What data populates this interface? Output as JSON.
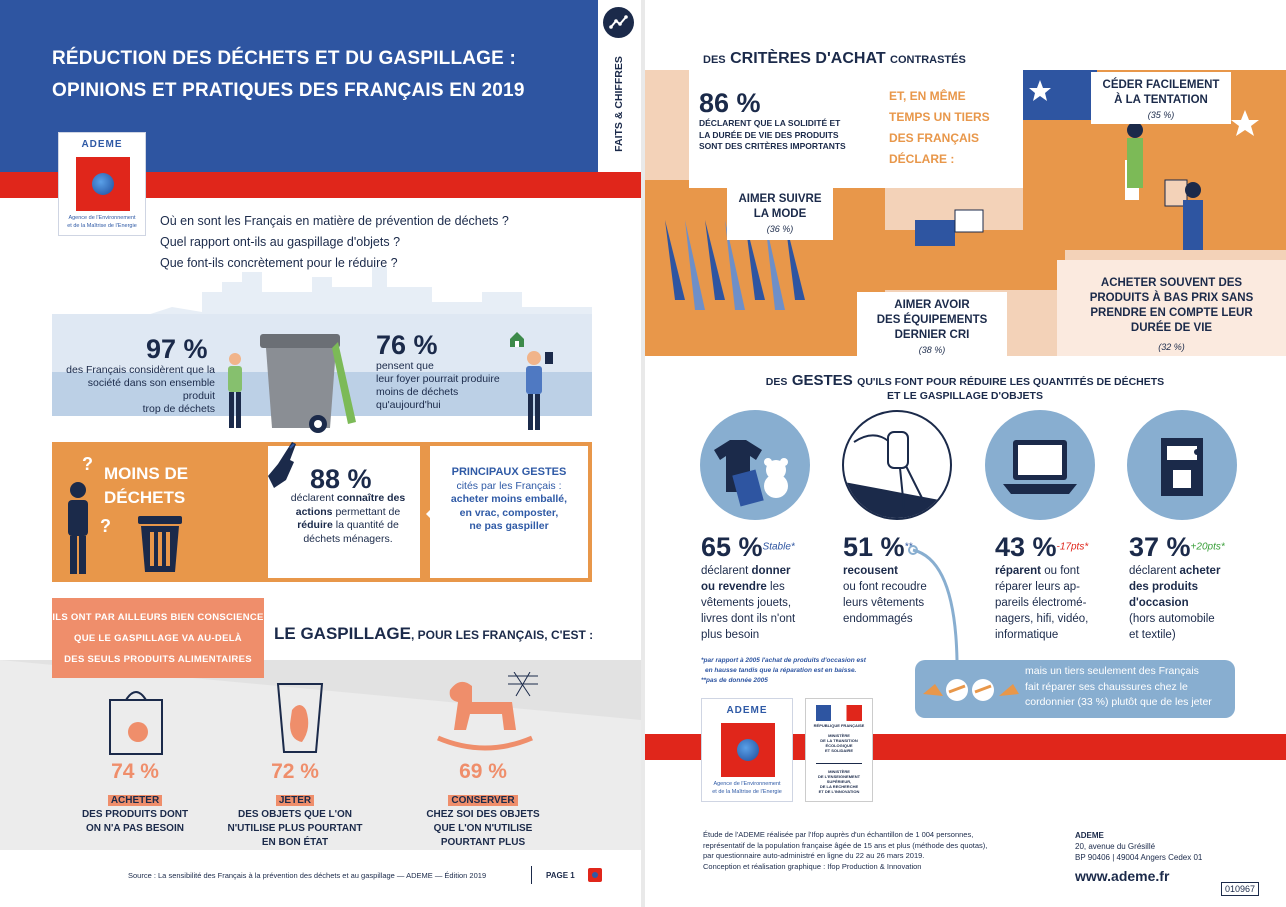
{
  "page1": {
    "title_line1": "RÉDUCTION DES DÉCHETS ET DU GASPILLAGE :",
    "title_line2": "OPINIONS ET PRATIQUES DES FRANÇAIS EN 2019",
    "side_label": "FAITS & CHIFFRES",
    "logo": {
      "name": "ADEME",
      "subtitle_line1": "Agence de l'Environnement",
      "subtitle_line2": "et de la Maîtrise de l'Energie"
    },
    "questions": [
      "Où en sont les Français en matière de prévention de déchets ?",
      "Quel rapport ont-ils au gaspillage d'objets ?",
      "Que font-ils concrètement pour le réduire ?"
    ],
    "stat97": {
      "value": "97 %",
      "text_line1": "des Français considèrent que la",
      "text_line2": "société dans son ensemble produit",
      "text_line3": "trop de déchets"
    },
    "stat76": {
      "value": "76 %",
      "text_line1": "pensent que",
      "text_line2": "leur foyer pourrait produire",
      "text_line3": "moins de déchets",
      "text_line4": "qu'aujourd'hui"
    },
    "moins_dechets_line1": "MOINS DE",
    "moins_dechets_line2": "DÉCHETS",
    "stat88": {
      "value": "88 %",
      "line1": "déclarent",
      "line1b": "connaître des",
      "line2": "actions",
      "line2b": "permettant de",
      "line3": "réduire",
      "line3b": "la quantité de",
      "line4": "déchets ménagers."
    },
    "gestes": {
      "title": "PRINCIPAUX GESTES",
      "line1": "cités par les Français :",
      "line2": "acheter moins emballé,",
      "line3": "en vrac, composter,",
      "line4": "ne pas gaspiller"
    },
    "conscience_line1": "ILS ONT PAR AILLEURS BIEN CONSCIENCE",
    "conscience_line2": "QUE LE GASPILLAGE VA AU-DELÀ",
    "conscience_line3": "DES SEULS PRODUITS ALIMENTAIRES",
    "gaspillage_title_big": "LE GASPILLAGE",
    "gaspillage_title_small": ", POUR LES FRANÇAIS, C'EST :",
    "waste_items": [
      {
        "value": "74 %",
        "action": "ACHETER",
        "line1": "DES PRODUITS DONT",
        "line2": "ON N'A PAS BESOIN",
        "line3": ""
      },
      {
        "value": "72 %",
        "action": "JETER",
        "line1": "DES OBJETS QUE L'ON",
        "line2": "N'UTILISE PLUS POURTANT",
        "line3": "EN BON ÉTAT"
      },
      {
        "value": "69 %",
        "action": "CONSERVER",
        "line1": "CHEZ SOI DES OBJETS",
        "line2": "QUE L'ON N'UTILISE",
        "line3": "POURTANT PLUS"
      }
    ],
    "source": "Source : La sensibilité des Français à la prévention des déchets et au gaspillage — ADEME — Édition 2019",
    "page_label": "PAGE 1"
  },
  "page2": {
    "criteres_small1": "DES",
    "criteres_big": "CRITÈRES D'ACHAT",
    "criteres_small2": "CONTRASTÉS",
    "stat86": {
      "value": "86 %",
      "line1": "DÉCLARENT QUE LA SOLIDITÉ ET",
      "line2": "LA DURÉE DE VIE DES PRODUITS",
      "line3": "SONT DES CRITÈRES IMPORTANTS"
    },
    "tiers_line1": "ET, EN MÊME",
    "tiers_line2": "TEMPS UN TIERS",
    "tiers_line3": "DES FRANÇAIS",
    "tiers_line4": "DÉCLARE :",
    "ceder": {
      "line1": "CÉDER FACILEMENT",
      "line2": "À LA TENTATION",
      "pct": "(35 %)"
    },
    "mode": {
      "line1": "AIMER SUIVRE",
      "line2": "LA MODE",
      "pct": "(36 %)"
    },
    "equipements": {
      "line1": "AIMER AVOIR",
      "line2": "DES ÉQUIPEMENTS",
      "line3": "DERNIER CRI",
      "pct": "(38 %)"
    },
    "bas_prix": {
      "line1": "ACHETER SOUVENT DES",
      "line2": "PRODUITS À BAS PRIX SANS",
      "line3": "PRENDRE EN COMPTE LEUR",
      "line4": "DURÉE DE VIE",
      "pct": "(32 %)"
    },
    "gestes_title_small1": "DES",
    "gestes_title_big": "GESTES",
    "gestes_title_small2": "QU'ILS FONT POUR RÉDUIRE LES QUANTITÉS DE DÉCHETS",
    "gestes_title_line2": "ET LE GASPILLAGE D'OBJETS",
    "stats": [
      {
        "value": "65 %",
        "trend": "Stable*",
        "l1a": "déclarent",
        "l1b": "donner",
        "l2a": "ou revendre",
        "l2b": "les",
        "l3": "vêtements jouets,",
        "l4": "livres dont ils n'ont",
        "l5": "plus besoin"
      },
      {
        "value": "51 %",
        "trend": "**",
        "l1a": "",
        "l1b": "recousent",
        "l2a": "ou font",
        "l2b": "recoudre",
        "l3": "leurs vêtements",
        "l4": "endommagés",
        "l5": ""
      },
      {
        "value": "43 %",
        "trend": "-17pts*",
        "l1a": "",
        "l1b": "réparent",
        "l2a": "ou font",
        "l2b": "réparer leurs ap-",
        "l3": "pareils électromé-",
        "l4": "nagers, hifi, vidéo,",
        "l5": "informatique"
      },
      {
        "value": "37 %",
        "trend": "+20pts*",
        "l1a": "déclarent",
        "l1b": "acheter",
        "l2a": "des produits",
        "l2b": "d'occasion",
        "l3": "(hors automobile",
        "l4": "et textile)",
        "l5": ""
      }
    ],
    "colors": {
      "trend_neg": "#e0261b",
      "trend_pos": "#3aa03a"
    },
    "footnote1": "*par rapport à 2005 l'achat de produits d'occasion est",
    "footnote2": "en hausse tandis que la réparation est en baisse.",
    "footnote3": "**pas de donnée 2005",
    "shoes_line1": "mais un tiers seulement des Français",
    "shoes_line2": "fait réparer ses chaussures chez le",
    "shoes_line3": "cordonnier (33 %) plutôt que de les jeter",
    "ministry_line1": "MINISTÈRE",
    "ministry_line2": "DE LA TRANSITION",
    "ministry_line3": "ÉCOLOGIQUE",
    "ministry_line4": "ET SOLIDAIRE",
    "ministry2_line1": "MINISTÈRE",
    "ministry2_line2": "DE L'ENSEIGNEMENT SUPÉRIEUR,",
    "ministry2_line3": "DE LA RECHERCHE",
    "ministry2_line4": "ET DE L'INNOVATION",
    "republique": "RÉPUBLIQUE FRANÇAISE",
    "study_line1": "Étude de l'ADEME réalisée par l'Ifop auprès d'un échantillon de 1 004 personnes,",
    "study_line2": "représentatif de la population française âgée de 15 ans et plus (méthode des quotas),",
    "study_line3": "par questionnaire auto-administré en ligne du 22 au 26 mars 2019.",
    "study_line4": "Conception et réalisation graphique : Ifop Production & Innovation",
    "address_name": "ADEME",
    "address_line1": "20, avenue du Grésillé",
    "address_line2": "BP 90406 | 49004 Angers Cedex 01",
    "website": "www.ademe.fr",
    "ref": "010967"
  }
}
